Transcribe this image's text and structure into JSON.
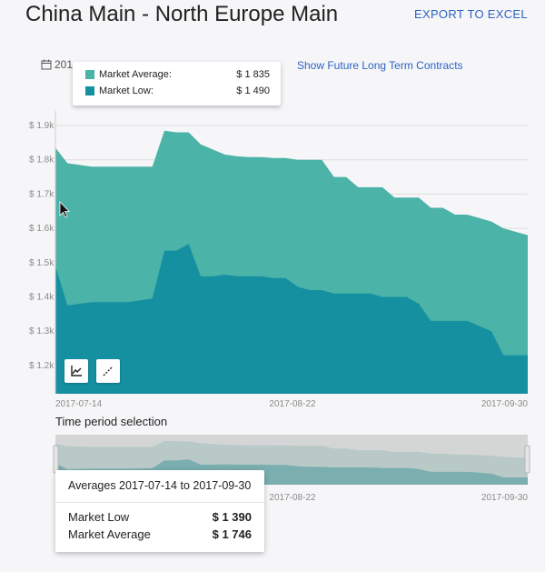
{
  "header": {
    "title": "China Main - North Europe Main",
    "export_label": "EXPORT TO EXCEL"
  },
  "toolbar": {
    "date_text_partial": "201",
    "future_link": "Show Future Long Term Contracts"
  },
  "legend": {
    "items": [
      {
        "label": "Market Average:",
        "value": "$ 1 835",
        "color": "#4bb3a7"
      },
      {
        "label": "Market Low:",
        "value": "$ 1 490",
        "color": "#1590a1"
      }
    ]
  },
  "chart_data": {
    "type": "area",
    "y_ticks": [
      "$ 1.9k",
      "$ 1.8k",
      "$ 1.7k",
      "$ 1.6k",
      "$ 1.5k",
      "$ 1.4k",
      "$ 1.3k",
      "$ 1.2k"
    ],
    "ylim": [
      1120,
      1920
    ],
    "x_ticks": [
      "2017-07-14",
      "2017-08-22",
      "2017-09-30"
    ],
    "x": [
      "2017-07-14",
      "2017-07-16",
      "2017-07-18",
      "2017-07-20",
      "2017-07-22",
      "2017-07-24",
      "2017-07-26",
      "2017-07-28",
      "2017-07-30",
      "2017-08-01",
      "2017-08-03",
      "2017-08-05",
      "2017-08-07",
      "2017-08-09",
      "2017-08-11",
      "2017-08-13",
      "2017-08-15",
      "2017-08-17",
      "2017-08-19",
      "2017-08-21",
      "2017-08-23",
      "2017-08-25",
      "2017-08-27",
      "2017-08-29",
      "2017-08-31",
      "2017-09-02",
      "2017-09-04",
      "2017-09-06",
      "2017-09-08",
      "2017-09-10",
      "2017-09-12",
      "2017-09-14",
      "2017-09-16",
      "2017-09-18",
      "2017-09-20",
      "2017-09-22",
      "2017-09-24",
      "2017-09-26",
      "2017-09-28",
      "2017-09-30"
    ],
    "series": [
      {
        "name": "Market Average",
        "color": "#4bb3a7",
        "values": [
          1835,
          1790,
          1785,
          1780,
          1780,
          1780,
          1780,
          1780,
          1780,
          1885,
          1880,
          1880,
          1845,
          1830,
          1815,
          1810,
          1808,
          1808,
          1805,
          1805,
          1800,
          1800,
          1800,
          1750,
          1750,
          1720,
          1720,
          1720,
          1690,
          1690,
          1690,
          1660,
          1660,
          1640,
          1640,
          1630,
          1620,
          1600,
          1590,
          1580
        ]
      },
      {
        "name": "Market Low",
        "color": "#1590a1",
        "values": [
          1490,
          1375,
          1380,
          1385,
          1385,
          1385,
          1385,
          1390,
          1395,
          1535,
          1535,
          1555,
          1460,
          1460,
          1465,
          1460,
          1460,
          1460,
          1455,
          1455,
          1430,
          1420,
          1420,
          1410,
          1410,
          1410,
          1410,
          1400,
          1400,
          1400,
          1380,
          1330,
          1330,
          1330,
          1330,
          1315,
          1300,
          1230,
          1230,
          1230
        ]
      }
    ]
  },
  "time_period": {
    "label": "Time period selection",
    "x_ticks": [
      "2017-07-14",
      "2017-08-22",
      "2017-09-30"
    ]
  },
  "averages": {
    "header": "Averages 2017-07-14 to 2017-09-30",
    "rows": [
      {
        "label": "Market Low",
        "value": "$ 1 390"
      },
      {
        "label": "Market Average",
        "value": "$ 1 746"
      }
    ]
  }
}
